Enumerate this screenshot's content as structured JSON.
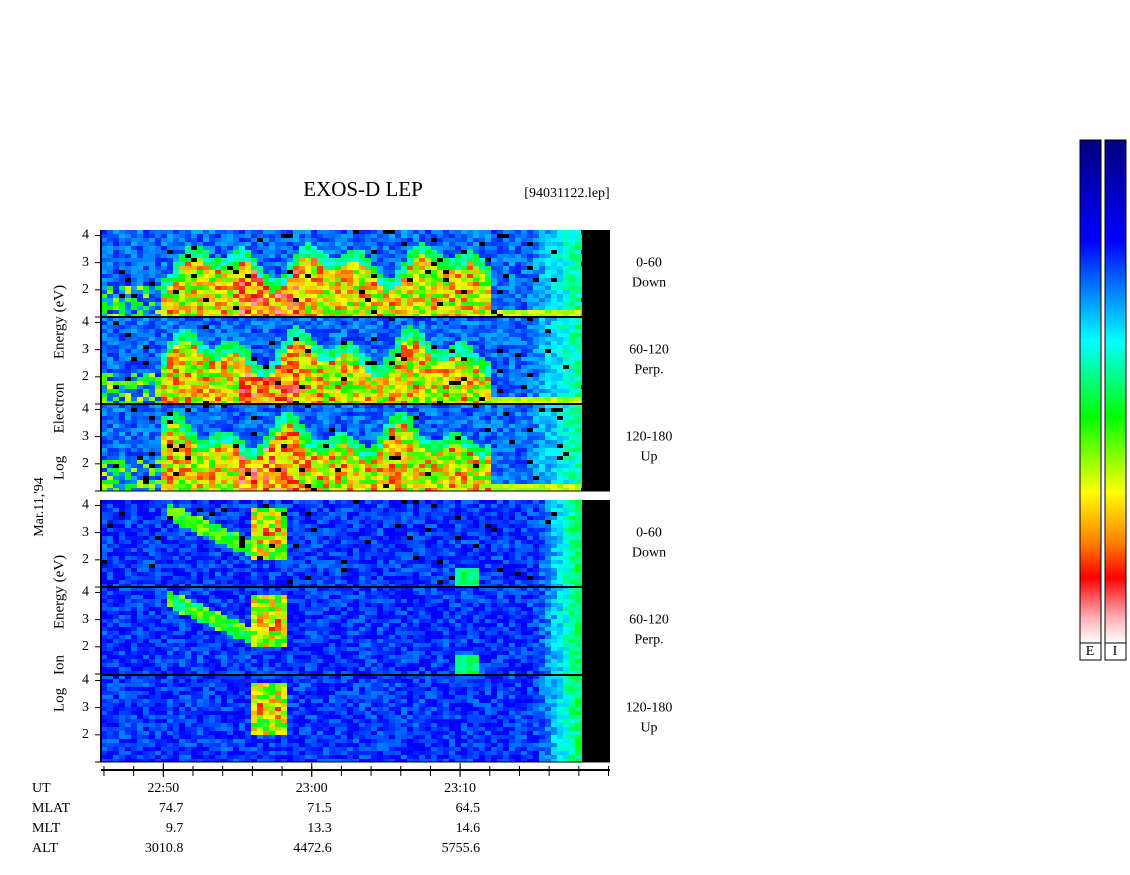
{
  "title": "EXOS-D LEP",
  "file": "[94031122.lep]",
  "date": "Mar.11,'94",
  "electron_axis_label": [
    "Log",
    "Electron",
    "Energy (eV)"
  ],
  "ion_axis_label": [
    "Log",
    "Ion",
    "Energy (eV)"
  ],
  "panels": [
    {
      "species": "electron",
      "angle": "0-60",
      "direction": "Down"
    },
    {
      "species": "electron",
      "angle": "60-120",
      "direction": "Perp."
    },
    {
      "species": "electron",
      "angle": "120-180",
      "direction": "Up"
    },
    {
      "species": "ion",
      "angle": "0-60",
      "direction": "Down"
    },
    {
      "species": "ion",
      "angle": "60-120",
      "direction": "Perp."
    },
    {
      "species": "ion",
      "angle": "120-180",
      "direction": "Up"
    }
  ],
  "yaxis": {
    "ylim": [
      1,
      4.2
    ],
    "yticks": [
      2,
      3,
      4
    ],
    "ytick_marks": [
      1,
      2,
      3,
      4
    ]
  },
  "xaxis": {
    "xlim": [
      1365.8,
      1400.1
    ],
    "xticks": [
      {
        "value": 1370,
        "label": "22:50"
      },
      {
        "value": 1380,
        "label": "23:00"
      },
      {
        "value": 1390,
        "label": "23:10"
      }
    ],
    "minor_ticks": [
      1366,
      1368,
      1370,
      1372,
      1374,
      1376,
      1378,
      1380,
      1382,
      1384,
      1386,
      1388,
      1390,
      1392,
      1394,
      1396,
      1398,
      1400
    ]
  },
  "ephemeris": {
    "time_label": "UT",
    "rows": [
      {
        "name": "MLAT",
        "values": [
          74.7,
          71.5,
          64.5
        ]
      },
      {
        "name": "MLT",
        "values": [
          9.7,
          13.3,
          14.6
        ]
      },
      {
        "name": "ALT",
        "values": [
          3010.8,
          4472.6,
          5755.6
        ]
      }
    ]
  },
  "colorbars": [
    "E",
    "I"
  ]
}
